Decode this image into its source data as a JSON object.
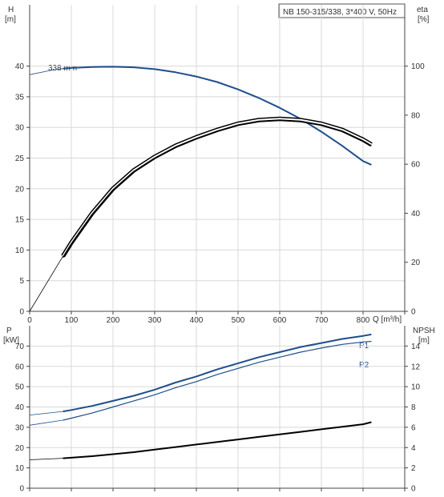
{
  "chart_data": [
    {
      "type": "line",
      "title": "NB 150-315/338, 3*400 V, 50Hz",
      "xlabel": "Q [m³/h]",
      "xlim": [
        0,
        900
      ],
      "x_ticks": [
        0,
        100,
        200,
        300,
        400,
        500,
        600,
        700,
        800
      ],
      "y_left": {
        "label_line1": "H",
        "label_line2": "[m]",
        "lim": [
          0,
          50
        ],
        "ticks": [
          0,
          5,
          10,
          15,
          20,
          25,
          30,
          35,
          40
        ]
      },
      "y_right": {
        "label_line1": "eta",
        "label_line2": "[%]",
        "lim": [
          0,
          125
        ],
        "ticks": [
          0,
          20,
          40,
          60,
          80,
          100
        ]
      },
      "grid": true,
      "annotations": [
        {
          "text": "338 mm",
          "x": 80,
          "y": 40
        }
      ],
      "series": [
        {
          "axis": "left",
          "color": "#1f4e8c",
          "thin_range": [
            0,
            80
          ],
          "x": [
            0,
            50,
            80,
            100,
            150,
            200,
            250,
            300,
            350,
            400,
            450,
            500,
            550,
            600,
            650,
            700,
            750,
            800,
            820
          ],
          "values": [
            38.6,
            39.3,
            39.6,
            39.7,
            39.85,
            39.9,
            39.8,
            39.5,
            39.0,
            38.3,
            37.4,
            36.2,
            34.8,
            33.2,
            31.4,
            29.3,
            27.0,
            24.5,
            23.9
          ]
        },
        {
          "axis": "right",
          "color": "#000000",
          "double": true,
          "thin_range": [
            0,
            80
          ],
          "x": [
            0,
            80,
            100,
            150,
            200,
            250,
            300,
            350,
            400,
            450,
            500,
            550,
            600,
            650,
            700,
            750,
            800,
            820
          ],
          "values": [
            0,
            22.5,
            28,
            40,
            50,
            57.5,
            63,
            67.5,
            71,
            74,
            76.5,
            78,
            78.5,
            78,
            76.5,
            74,
            70,
            68
          ]
        }
      ]
    },
    {
      "type": "line",
      "xlim": [
        0,
        900
      ],
      "y_left": {
        "label_line1": "P",
        "label_line2": "[kW]",
        "lim": [
          0,
          80
        ],
        "ticks": [
          0,
          10,
          20,
          30,
          40,
          50,
          60,
          70
        ]
      },
      "y_right": {
        "label_line1": "NPSH",
        "label_line2": "[m]",
        "lim": [
          0,
          16
        ],
        "ticks": [
          0,
          2,
          4,
          6,
          8,
          10,
          12,
          14
        ]
      },
      "grid": true,
      "series": [
        {
          "name": "P1",
          "axis": "left",
          "color": "#1f4e8c",
          "width": 2,
          "thin_range": [
            0,
            80
          ],
          "x": [
            0,
            80,
            100,
            150,
            200,
            250,
            300,
            350,
            400,
            450,
            500,
            550,
            600,
            650,
            700,
            750,
            800,
            820
          ],
          "values": [
            36,
            37.8,
            38.5,
            40.5,
            43,
            45.5,
            48.5,
            52,
            55,
            58.5,
            61.5,
            64.5,
            67,
            69.5,
            71.5,
            73.5,
            75,
            75.7
          ]
        },
        {
          "name": "P2",
          "axis": "left",
          "color": "#1f4e8c",
          "width": 1.2,
          "thin_range": [
            0,
            80
          ],
          "x": [
            0,
            80,
            100,
            150,
            200,
            250,
            300,
            350,
            400,
            450,
            500,
            550,
            600,
            650,
            700,
            750,
            800,
            820
          ],
          "values": [
            31,
            33.5,
            34.5,
            37,
            40,
            43,
            46,
            49.5,
            52.5,
            56,
            59,
            62,
            64.5,
            67,
            69,
            70.8,
            72,
            72.3
          ]
        },
        {
          "axis": "right",
          "color": "#000000",
          "width": 2,
          "thin_range": [
            0,
            80
          ],
          "x": [
            0,
            80,
            100,
            150,
            200,
            250,
            300,
            350,
            400,
            450,
            500,
            550,
            600,
            650,
            700,
            750,
            800,
            820
          ],
          "values": [
            2.8,
            2.95,
            3.0,
            3.15,
            3.35,
            3.55,
            3.8,
            4.05,
            4.3,
            4.55,
            4.8,
            5.05,
            5.3,
            5.55,
            5.8,
            6.05,
            6.3,
            6.5
          ]
        }
      ]
    }
  ]
}
